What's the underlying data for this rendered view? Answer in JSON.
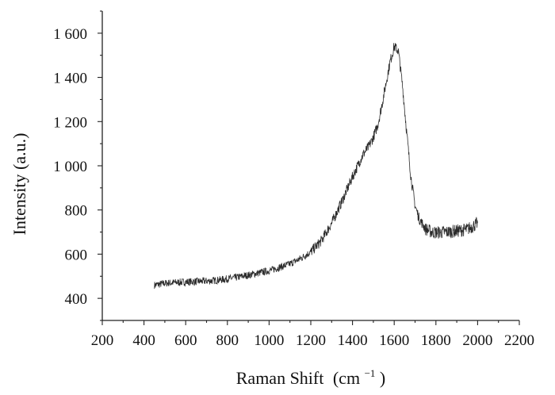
{
  "chart_data": {
    "type": "line",
    "title": "",
    "xlabel": "Raman Shift",
    "xlabel_unit_base": "(cm",
    "xlabel_unit_exp": "−1",
    "xlabel_unit_close": " )",
    "ylabel": "Intensity (a.u.)",
    "xlim": [
      200,
      2200
    ],
    "ylim": [
      300,
      1700
    ],
    "x_ticks": [
      200,
      400,
      600,
      800,
      1000,
      1200,
      1400,
      1600,
      1800,
      2000,
      2200
    ],
    "x_tick_labels": [
      "200",
      "400",
      "600",
      "800",
      "1000",
      "1200",
      "1400",
      "1600",
      "1800",
      "2000",
      "2200"
    ],
    "y_ticks": [
      400,
      600,
      800,
      1000,
      1200,
      1400,
      1600
    ],
    "y_tick_labels": [
      "400",
      "600",
      "800",
      "1 000",
      "1 200",
      "1 400",
      "1 600"
    ],
    "grid": false,
    "legend": "none",
    "series": [
      {
        "color": "#2a2a2a",
        "x": [
          450,
          500,
          550,
          600,
          650,
          700,
          750,
          800,
          850,
          900,
          950,
          1000,
          1050,
          1100,
          1150,
          1200,
          1250,
          1300,
          1350,
          1400,
          1450,
          1480,
          1500,
          1520,
          1540,
          1560,
          1580,
          1600,
          1620,
          1640,
          1660,
          1680,
          1700,
          1720,
          1750,
          1780,
          1800,
          1850,
          1900,
          1950,
          2000
        ],
        "y": [
          460,
          468,
          472,
          474,
          476,
          478,
          482,
          488,
          496,
          505,
          515,
          525,
          540,
          556,
          580,
          610,
          660,
          740,
          840,
          950,
          1050,
          1090,
          1130,
          1180,
          1270,
          1370,
          1470,
          1540,
          1520,
          1360,
          1150,
          950,
          820,
          760,
          715,
          700,
          698,
          700,
          705,
          712,
          740
        ]
      }
    ]
  }
}
